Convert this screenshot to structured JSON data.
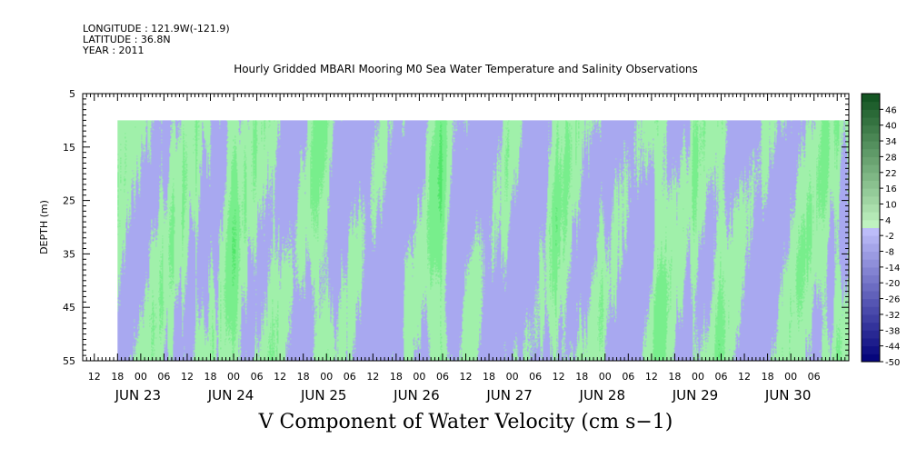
{
  "header": {
    "longitude": "LONGITUDE : 121.9W(-121.9)",
    "latitude": "LATITUDE : 36.8N",
    "year": "YEAR : 2011"
  },
  "chart_data": {
    "type": "heatmap",
    "title": "Hourly Gridded MBARI Mooring M0 Sea Water Temperature and Salinity Observations",
    "xlabel": "V Component of Water Velocity (cm s−1)",
    "ylabel": "DEPTH (m)",
    "x_range": [
      "2011-06-22T09:00",
      "2011-06-30T15:00"
    ],
    "data_x_range": [
      "2011-06-22T18:00",
      "2011-06-30T15:00"
    ],
    "y_range": [
      5,
      55
    ],
    "y_inverted": true,
    "data_y_range": [
      10,
      55
    ],
    "y_ticks": [
      5,
      15,
      25,
      35,
      45,
      55
    ],
    "x_hour_ticks": [
      "12",
      "18",
      "00",
      "06",
      "12",
      "18",
      "00",
      "06",
      "12",
      "18",
      "00",
      "06",
      "12",
      "18",
      "00",
      "06",
      "12",
      "18",
      "00",
      "06",
      "12",
      "18",
      "00",
      "06",
      "12",
      "18",
      "00",
      "06",
      "12",
      "18",
      "00",
      "06"
    ],
    "x_day_labels": [
      "JUN 23",
      "JUN 24",
      "JUN 25",
      "JUN 26",
      "JUN 27",
      "JUN 28",
      "JUN 29",
      "JUN 30"
    ],
    "colorbar": {
      "labels": [
        "46",
        "40",
        "34",
        "28",
        "22",
        "16",
        "10",
        "4",
        "-2",
        "-8",
        "-14",
        "-20",
        "-26",
        "-32",
        "-38",
        "-44",
        "-50"
      ],
      "range": [
        -50,
        52
      ],
      "step": 3,
      "negative_color": "#a8a8f0",
      "positive_color": "#66f27a"
    },
    "field_description": "alternating bands of weak negative (about -8 to -2) and weak positive (about 4 to 16) velocities, varying with time and depth"
  }
}
